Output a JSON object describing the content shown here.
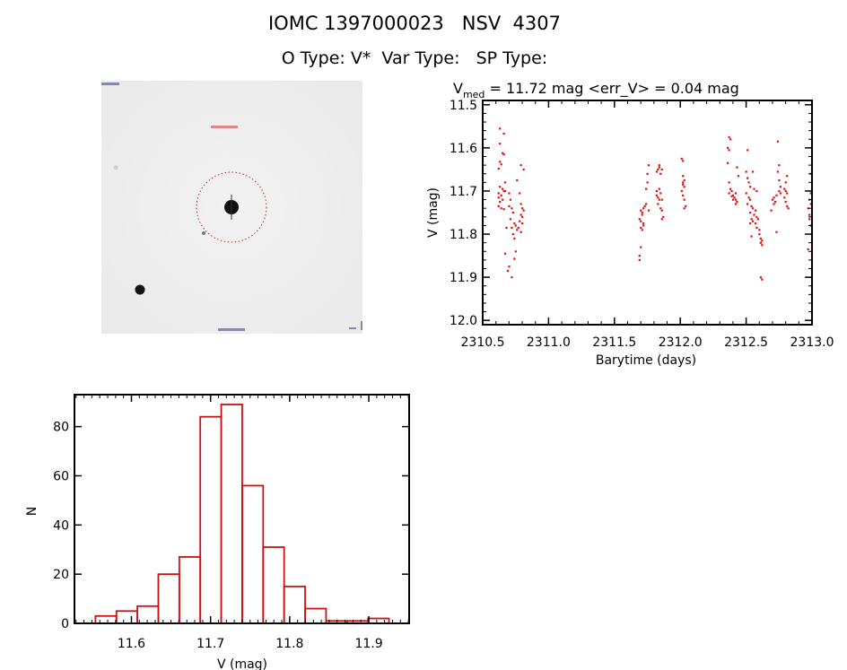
{
  "header": {
    "line1": "IOMC 1397000023   NSV  4307",
    "line2": "O Type: V*  Var Type:   SP Type:"
  },
  "finder_image": {
    "marker_color": "#cc2222"
  },
  "chart_data": [
    {
      "type": "scatter",
      "title_main": "V",
      "title_sub": "med",
      "title_rest": " = 11.72 mag <err_V> = 0.04 mag",
      "xlabel": "Barytime (days)",
      "ylabel": "V (mag)",
      "xlim": [
        2310.5,
        2313.0
      ],
      "ylim": [
        12.01,
        11.49
      ],
      "y_inverted": true,
      "xticks": [
        "2310.5",
        "2311.0",
        "2311.5",
        "2312.0",
        "2312.5",
        "2313.0"
      ],
      "yticks": [
        "11.5",
        "11.6",
        "11.7",
        "11.8",
        "11.9",
        "12.0"
      ],
      "color": "#dd1111",
      "points": [
        [
          2310.63,
          11.555
        ],
        [
          2310.66,
          11.567
        ],
        [
          2310.63,
          11.59
        ],
        [
          2310.65,
          11.612
        ],
        [
          2310.66,
          11.615
        ],
        [
          2310.63,
          11.632
        ],
        [
          2310.64,
          11.638
        ],
        [
          2310.62,
          11.648
        ],
        [
          2310.67,
          11.68
        ],
        [
          2310.63,
          11.69
        ],
        [
          2310.65,
          11.695
        ],
        [
          2310.66,
          11.7
        ],
        [
          2310.67,
          11.7
        ],
        [
          2310.62,
          11.705
        ],
        [
          2310.64,
          11.71
        ],
        [
          2310.62,
          11.715
        ],
        [
          2310.65,
          11.72
        ],
        [
          2310.63,
          11.725
        ],
        [
          2310.62,
          11.735
        ],
        [
          2310.64,
          11.74
        ],
        [
          2310.66,
          11.742
        ],
        [
          2310.7,
          11.705
        ],
        [
          2310.71,
          11.72
        ],
        [
          2310.7,
          11.735
        ],
        [
          2310.72,
          11.74
        ],
        [
          2310.73,
          11.75
        ],
        [
          2310.71,
          11.765
        ],
        [
          2310.74,
          11.775
        ],
        [
          2310.72,
          11.785
        ],
        [
          2310.75,
          11.78
        ],
        [
          2310.73,
          11.8
        ],
        [
          2310.74,
          11.81
        ],
        [
          2310.76,
          11.79
        ],
        [
          2310.68,
          11.785
        ],
        [
          2310.67,
          11.845
        ],
        [
          2310.7,
          11.875
        ],
        [
          2310.69,
          11.885
        ],
        [
          2310.72,
          11.9
        ],
        [
          2310.74,
          11.857
        ],
        [
          2310.75,
          11.84
        ],
        [
          2310.76,
          11.675
        ],
        [
          2310.79,
          11.64
        ],
        [
          2310.81,
          11.65
        ],
        [
          2310.78,
          11.705
        ],
        [
          2310.79,
          11.73
        ],
        [
          2310.8,
          11.74
        ],
        [
          2310.81,
          11.745
        ],
        [
          2310.79,
          11.755
        ],
        [
          2310.8,
          11.76
        ],
        [
          2310.78,
          11.77
        ],
        [
          2310.8,
          11.775
        ],
        [
          2310.79,
          11.795
        ],
        [
          2310.77,
          11.785
        ],
        [
          2311.69,
          11.86
        ],
        [
          2311.69,
          11.85
        ],
        [
          2311.7,
          11.83
        ],
        [
          2311.71,
          11.79
        ],
        [
          2311.7,
          11.785
        ],
        [
          2311.7,
          11.77
        ],
        [
          2311.69,
          11.765
        ],
        [
          2311.71,
          11.755
        ],
        [
          2311.7,
          11.745
        ],
        [
          2311.72,
          11.74
        ],
        [
          2311.73,
          11.735
        ],
        [
          2311.71,
          11.75
        ],
        [
          2311.72,
          11.775
        ],
        [
          2311.74,
          11.73
        ],
        [
          2311.74,
          11.695
        ],
        [
          2311.75,
          11.68
        ],
        [
          2311.75,
          11.66
        ],
        [
          2311.76,
          11.64
        ],
        [
          2311.76,
          11.745
        ],
        [
          2311.72,
          11.78
        ],
        [
          2311.82,
          11.7
        ],
        [
          2311.82,
          11.71
        ],
        [
          2311.83,
          11.715
        ],
        [
          2311.84,
          11.72
        ],
        [
          2311.83,
          11.73
        ],
        [
          2311.85,
          11.705
        ],
        [
          2311.84,
          11.695
        ],
        [
          2311.86,
          11.72
        ],
        [
          2311.85,
          11.74
        ],
        [
          2311.86,
          11.745
        ],
        [
          2311.87,
          11.76
        ],
        [
          2311.86,
          11.765
        ],
        [
          2311.83,
          11.65
        ],
        [
          2311.84,
          11.645
        ],
        [
          2311.85,
          11.66
        ],
        [
          2311.86,
          11.65
        ],
        [
          2311.82,
          11.655
        ],
        [
          2311.84,
          11.64
        ],
        [
          2312.01,
          11.625
        ],
        [
          2312.02,
          11.63
        ],
        [
          2312.02,
          11.665
        ],
        [
          2312.03,
          11.675
        ],
        [
          2312.02,
          11.685
        ],
        [
          2312.03,
          11.69
        ],
        [
          2312.01,
          11.7
        ],
        [
          2312.02,
          11.71
        ],
        [
          2312.03,
          11.72
        ],
        [
          2312.04,
          11.735
        ],
        [
          2312.03,
          11.74
        ],
        [
          2312.02,
          11.68
        ],
        [
          2312.37,
          11.575
        ],
        [
          2312.38,
          11.58
        ],
        [
          2312.36,
          11.6
        ],
        [
          2312.37,
          11.605
        ],
        [
          2312.36,
          11.635
        ],
        [
          2312.43,
          11.645
        ],
        [
          2312.44,
          11.665
        ],
        [
          2312.37,
          11.68
        ],
        [
          2312.38,
          11.695
        ],
        [
          2312.39,
          11.7
        ],
        [
          2312.37,
          11.705
        ],
        [
          2312.4,
          11.71
        ],
        [
          2312.41,
          11.715
        ],
        [
          2312.42,
          11.72
        ],
        [
          2312.43,
          11.725
        ],
        [
          2312.42,
          11.73
        ],
        [
          2312.39,
          11.712
        ],
        [
          2312.4,
          11.72
        ],
        [
          2312.42,
          11.705
        ],
        [
          2312.51,
          11.605
        ],
        [
          2312.5,
          11.655
        ],
        [
          2312.51,
          11.67
        ],
        [
          2312.52,
          11.68
        ],
        [
          2312.55,
          11.655
        ],
        [
          2312.53,
          11.69
        ],
        [
          2312.56,
          11.695
        ],
        [
          2312.58,
          11.7
        ],
        [
          2312.5,
          11.705
        ],
        [
          2312.52,
          11.715
        ],
        [
          2312.53,
          11.72
        ],
        [
          2312.51,
          11.73
        ],
        [
          2312.54,
          11.735
        ],
        [
          2312.55,
          11.74
        ],
        [
          2312.57,
          11.745
        ],
        [
          2312.53,
          11.75
        ],
        [
          2312.56,
          11.755
        ],
        [
          2312.54,
          11.765
        ],
        [
          2312.58,
          11.76
        ],
        [
          2312.55,
          11.77
        ],
        [
          2312.57,
          11.775
        ],
        [
          2312.53,
          11.775
        ],
        [
          2312.59,
          11.765
        ],
        [
          2312.6,
          11.79
        ],
        [
          2312.61,
          11.81
        ],
        [
          2312.62,
          11.815
        ],
        [
          2312.61,
          11.82
        ],
        [
          2312.62,
          11.825
        ],
        [
          2312.6,
          11.8
        ],
        [
          2312.54,
          11.805
        ],
        [
          2312.58,
          11.785
        ],
        [
          2312.62,
          11.905
        ],
        [
          2312.61,
          11.9
        ],
        [
          2312.74,
          11.585
        ],
        [
          2312.75,
          11.64
        ],
        [
          2312.74,
          11.655
        ],
        [
          2312.75,
          11.675
        ],
        [
          2312.76,
          11.69
        ],
        [
          2312.75,
          11.7
        ],
        [
          2312.76,
          11.705
        ],
        [
          2312.73,
          11.71
        ],
        [
          2312.71,
          11.715
        ],
        [
          2312.7,
          11.72
        ],
        [
          2312.72,
          11.725
        ],
        [
          2312.71,
          11.73
        ],
        [
          2312.69,
          11.745
        ],
        [
          2312.73,
          11.795
        ],
        [
          2312.81,
          11.665
        ],
        [
          2312.8,
          11.68
        ],
        [
          2312.79,
          11.695
        ],
        [
          2312.8,
          11.7
        ],
        [
          2312.81,
          11.705
        ],
        [
          2312.79,
          11.715
        ],
        [
          2312.8,
          11.725
        ],
        [
          2312.81,
          11.735
        ],
        [
          2312.82,
          11.74
        ],
        [
          2312.99,
          11.66
        ],
        [
          2312.99,
          11.705
        ],
        [
          2312.98,
          11.72
        ],
        [
          2312.99,
          11.73
        ],
        [
          2312.97,
          11.74
        ],
        [
          2312.98,
          11.755
        ],
        [
          2312.98,
          11.765
        ],
        [
          2312.99,
          11.78
        ],
        [
          2312.97,
          11.835
        ]
      ]
    },
    {
      "type": "bar",
      "subtype": "histogram",
      "xlabel": "V (mag)",
      "ylabel": "N",
      "xlim": [
        11.528,
        11.951
      ],
      "ylim": [
        0,
        93
      ],
      "xticks": [
        "11.6",
        "11.7",
        "11.8",
        "11.9"
      ],
      "yticks": [
        "0",
        "20",
        "40",
        "60",
        "80"
      ],
      "color": "#cc1111",
      "bin_edges": [
        11.5545,
        11.581,
        11.6075,
        11.634,
        11.6605,
        11.687,
        11.7135,
        11.74,
        11.7665,
        11.793,
        11.8195,
        11.846,
        11.8725,
        11.899,
        11.9255
      ],
      "values": [
        3,
        5,
        7,
        20,
        27,
        84,
        89,
        56,
        31,
        15,
        6,
        1,
        1,
        2
      ]
    }
  ]
}
